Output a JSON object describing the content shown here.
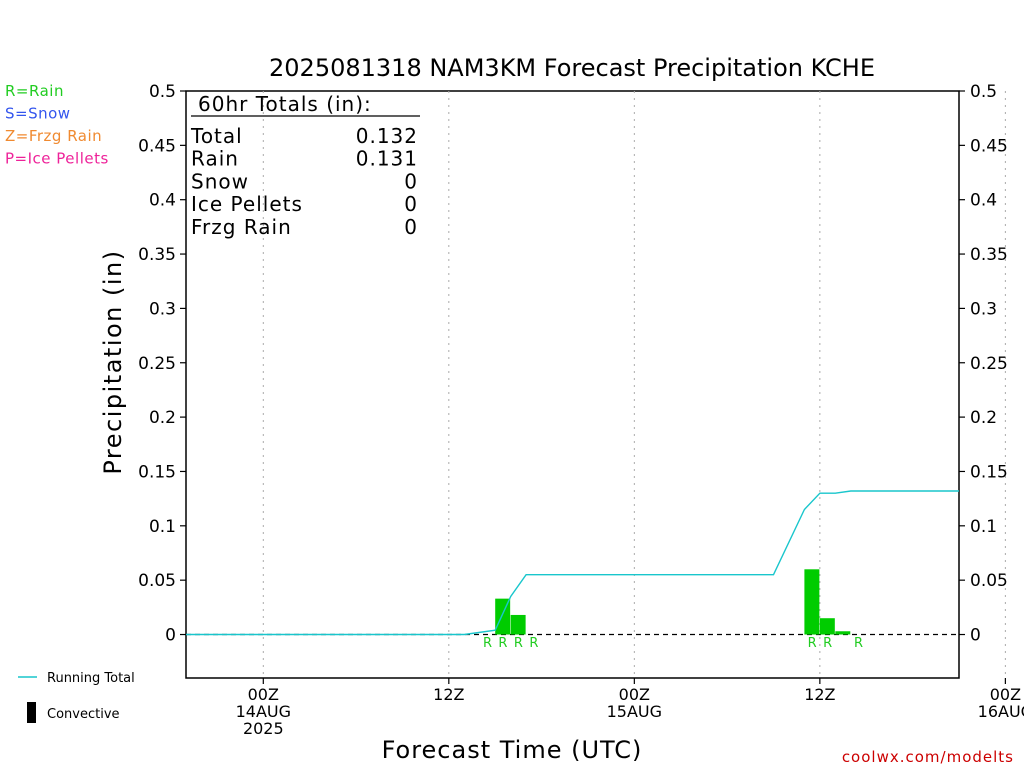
{
  "chart_data": {
    "type": "bar",
    "title": "2025081318 NAM3KM Forecast Precipitation KCHE",
    "xlabel": "Forecast Time (UTC)",
    "ylabel": "Precipitation (in)",
    "ylim": [
      -0.04,
      0.5
    ],
    "yticks": [
      "0",
      "0.05",
      "0.1",
      "0.15",
      "0.2",
      "0.25",
      "0.3",
      "0.35",
      "0.4",
      "0.45",
      "0.5"
    ],
    "ytick_values": [
      0,
      0.05,
      0.1,
      0.15,
      0.2,
      0.25,
      0.3,
      0.35,
      0.4,
      0.45,
      0.5
    ],
    "xlim_hours_utc": [
      -5,
      45
    ],
    "xticks": [
      {
        "hour": 0,
        "lines": [
          "00Z",
          "14AUG",
          "2025"
        ]
      },
      {
        "hour": 12,
        "lines": [
          "12Z"
        ]
      },
      {
        "hour": 24,
        "lines": [
          "00Z",
          "15AUG"
        ]
      },
      {
        "hour": 36,
        "lines": [
          "12Z"
        ]
      },
      {
        "hour": 48,
        "lines": [
          "00Z",
          "16AUG"
        ]
      }
    ],
    "grid": "vertical dotted at tick marks",
    "bars": [
      {
        "hour": 15.5,
        "value": 0.033,
        "type": "R"
      },
      {
        "hour": 16.5,
        "value": 0.018,
        "type": "R"
      },
      {
        "hour": 35.5,
        "value": 0.06,
        "type": "R"
      },
      {
        "hour": 36.5,
        "value": 0.015,
        "type": "R"
      },
      {
        "hour": 37.5,
        "value": 0.003,
        "type": "R"
      }
    ],
    "ptype_labels": [
      {
        "hour": 14.5,
        "text": "R"
      },
      {
        "hour": 15.5,
        "text": "R"
      },
      {
        "hour": 16.5,
        "text": "R"
      },
      {
        "hour": 17.5,
        "text": "R"
      },
      {
        "hour": 35.5,
        "text": "R"
      },
      {
        "hour": 36.5,
        "text": "R"
      },
      {
        "hour": 38.5,
        "text": "R"
      }
    ],
    "running_total": [
      [
        -5,
        0
      ],
      [
        13,
        0
      ],
      [
        15,
        0.004
      ],
      [
        16,
        0.035
      ],
      [
        17,
        0.055
      ],
      [
        33,
        0.055
      ],
      [
        35,
        0.115
      ],
      [
        36,
        0.13
      ],
      [
        37,
        0.13
      ],
      [
        38,
        0.132
      ],
      [
        45,
        0.132
      ]
    ],
    "totals_box": {
      "header": "60hr Totals (in):",
      "rows": [
        {
          "label": "Total",
          "value": "0.132"
        },
        {
          "label": "Rain",
          "value": "0.131"
        },
        {
          "label": "Snow",
          "value": "0"
        },
        {
          "label": "Ice Pellets",
          "value": "0"
        },
        {
          "label": "Frzg Rain",
          "value": "0"
        }
      ]
    },
    "ptype_legend": [
      {
        "text": "R=Rain",
        "color": "#22cc22"
      },
      {
        "text": "S=Snow",
        "color": "#3355ee"
      },
      {
        "text": "Z=Frzg Rain",
        "color": "#f08a30"
      },
      {
        "text": "P=Ice Pellets",
        "color": "#ee2299"
      }
    ],
    "legend": [
      {
        "name": "Running Total",
        "style": "line",
        "color": "#19c6cc"
      },
      {
        "name": "Convective",
        "style": "bar",
        "color": "#000000"
      }
    ],
    "colors": {
      "bar": "#00cc00",
      "running_total": "#19c6cc",
      "ptype_label": "#22cc22",
      "credit": "#cc0000"
    }
  },
  "credit": "coolwx.com/modelts"
}
